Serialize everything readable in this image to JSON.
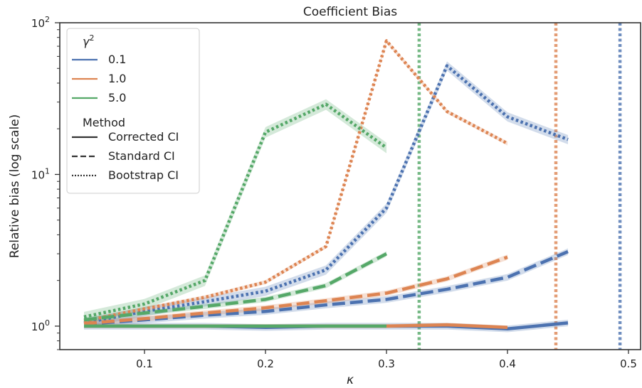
{
  "chart_data": {
    "type": "line",
    "title": "Coefficient Bias",
    "xlabel": "κ",
    "ylabel": "Relative bias (log scale)",
    "yscale": "log",
    "xlim": [
      0.03,
      0.51
    ],
    "ylim": [
      0.7,
      100
    ],
    "x_ticks": [
      {
        "value": 0.1,
        "label": "0.1"
      },
      {
        "value": 0.2,
        "label": "0.2"
      },
      {
        "value": 0.3,
        "label": "0.3"
      },
      {
        "value": 0.4,
        "label": "0.4"
      },
      {
        "value": 0.5,
        "label": "0.5"
      }
    ],
    "y_ticks": [
      {
        "value": 1,
        "base": "10",
        "exp": "0"
      },
      {
        "value": 10,
        "base": "10",
        "exp": "1"
      },
      {
        "value": 100,
        "base": "10",
        "exp": "2"
      }
    ],
    "legend": {
      "position": "upper-left",
      "hue_title_base": "γ",
      "hue_title_exp": "2",
      "hue_entries": [
        {
          "label": "0.1",
          "color": "#4c72b0"
        },
        {
          "label": "1.0",
          "color": "#dd8452"
        },
        {
          "label": "5.0",
          "color": "#55a868"
        }
      ],
      "style_title": "Method",
      "style_entries": [
        {
          "label": "Corrected CI",
          "dash": "solid"
        },
        {
          "label": "Standard CI",
          "dash": "dashed"
        },
        {
          "label": "Bootstrap CI",
          "dash": "dotted"
        }
      ]
    },
    "vlines": [
      {
        "x": 0.327,
        "color": "#55a868"
      },
      {
        "x": 0.44,
        "color": "#dd8452"
      },
      {
        "x": 0.493,
        "color": "#4c72b0"
      }
    ],
    "series": [
      {
        "gamma": "0.1",
        "method": "Corrected CI",
        "color": "#4c72b0",
        "dash": "solid",
        "x": [
          0.05,
          0.1,
          0.15,
          0.2,
          0.25,
          0.3,
          0.35,
          0.4,
          0.45
        ],
        "y": [
          1.0,
          1.0,
          1.0,
          0.98,
          1.0,
          1.0,
          1.0,
          0.96,
          1.05
        ],
        "ci": 0.05
      },
      {
        "gamma": "0.1",
        "method": "Standard CI",
        "color": "#4c72b0",
        "dash": "dashed",
        "x": [
          0.05,
          0.1,
          0.15,
          0.2,
          0.25,
          0.3,
          0.35,
          0.4,
          0.45
        ],
        "y": [
          1.03,
          1.1,
          1.18,
          1.25,
          1.38,
          1.5,
          1.75,
          2.1,
          3.1
        ],
        "ci": 0.05
      },
      {
        "gamma": "0.1",
        "method": "Bootstrap CI",
        "color": "#4c72b0",
        "dash": "dotted",
        "x": [
          0.05,
          0.1,
          0.15,
          0.2,
          0.25,
          0.3,
          0.35,
          0.4,
          0.45
        ],
        "y": [
          1.05,
          1.25,
          1.45,
          1.7,
          2.35,
          6.0,
          52,
          24,
          17
        ],
        "ci": 0.07
      },
      {
        "gamma": "1.0",
        "method": "Corrected CI",
        "color": "#dd8452",
        "dash": "solid",
        "x": [
          0.05,
          0.1,
          0.15,
          0.2,
          0.25,
          0.3,
          0.35,
          0.4
        ],
        "y": [
          1.0,
          1.0,
          1.0,
          1.0,
          1.0,
          1.0,
          1.02,
          0.98
        ],
        "ci": 0.03
      },
      {
        "gamma": "1.0",
        "method": "Standard CI",
        "color": "#dd8452",
        "dash": "dashed",
        "x": [
          0.05,
          0.1,
          0.15,
          0.2,
          0.25,
          0.3,
          0.35,
          0.4
        ],
        "y": [
          1.04,
          1.12,
          1.22,
          1.32,
          1.47,
          1.65,
          2.05,
          2.85
        ],
        "ci": 0.04
      },
      {
        "gamma": "1.0",
        "method": "Bootstrap CI",
        "color": "#dd8452",
        "dash": "dotted",
        "x": [
          0.05,
          0.1,
          0.15,
          0.2,
          0.25,
          0.3,
          0.35,
          0.4
        ],
        "y": [
          1.08,
          1.3,
          1.55,
          1.95,
          3.35,
          76,
          26,
          16
        ],
        "ci": 0.03
      },
      {
        "gamma": "5.0",
        "method": "Corrected CI",
        "color": "#55a868",
        "dash": "solid",
        "x": [
          0.05,
          0.1,
          0.15,
          0.2,
          0.25,
          0.3
        ],
        "y": [
          1.0,
          1.0,
          1.0,
          1.0,
          1.0,
          1.0
        ],
        "ci": 0.02
      },
      {
        "gamma": "5.0",
        "method": "Standard CI",
        "color": "#55a868",
        "dash": "dashed",
        "x": [
          0.05,
          0.1,
          0.15,
          0.2,
          0.25,
          0.3
        ],
        "y": [
          1.1,
          1.22,
          1.35,
          1.5,
          1.85,
          3.0
        ],
        "ci": 0.04
      },
      {
        "gamma": "5.0",
        "method": "Bootstrap CI",
        "color": "#55a868",
        "dash": "dotted",
        "x": [
          0.05,
          0.1,
          0.15,
          0.2,
          0.25,
          0.3
        ],
        "y": [
          1.15,
          1.4,
          2.0,
          19.0,
          29.0,
          15.0
        ],
        "ci": 0.08
      }
    ]
  }
}
